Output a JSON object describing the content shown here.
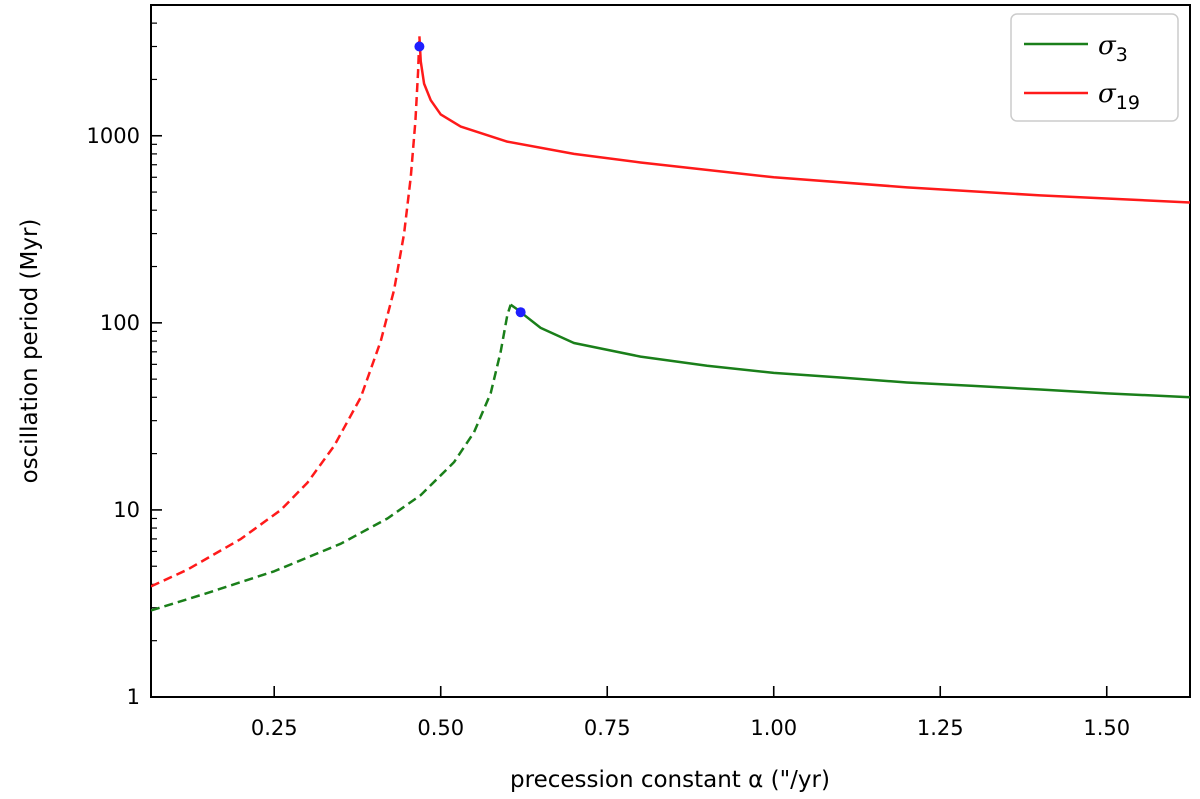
{
  "chart_data": {
    "type": "line",
    "title": "",
    "xlabel": "precession constant α (\"/yr)",
    "ylabel": "oscillation period (Myr)",
    "xlim": [
      0.065,
      1.625
    ],
    "ylim": [
      1,
      5000
    ],
    "y_scale": "log",
    "grid": false,
    "legend_position": "top-right",
    "x_ticks": [
      {
        "value": 0.25,
        "label": "0.25"
      },
      {
        "value": 0.5,
        "label": "0.50"
      },
      {
        "value": 0.75,
        "label": "0.75"
      },
      {
        "value": 1.0,
        "label": "1.00"
      },
      {
        "value": 1.25,
        "label": "1.25"
      },
      {
        "value": 1.5,
        "label": "1.50"
      }
    ],
    "y_ticks": [
      {
        "value": 1,
        "label": "1"
      },
      {
        "value": 10,
        "label": "10"
      },
      {
        "value": 100,
        "label": "100"
      },
      {
        "value": 1000,
        "label": "1000"
      }
    ],
    "series": [
      {
        "name": "σ3",
        "legend_symbol": "σ",
        "legend_subscript": "3",
        "color": "#1a7f1a",
        "dashed_segment": {
          "x": [
            0.065,
            0.15,
            0.25,
            0.35,
            0.42,
            0.47,
            0.52,
            0.55,
            0.575,
            0.59,
            0.6,
            0.605
          ],
          "y": [
            2.9,
            3.6,
            4.7,
            6.6,
            9.0,
            12.0,
            18.0,
            26.0,
            42.0,
            70.0,
            110.0,
            125.0
          ]
        },
        "solid_segment": {
          "x": [
            0.605,
            0.615,
            0.62,
            0.65,
            0.7,
            0.8,
            0.9,
            1.0,
            1.1,
            1.2,
            1.3,
            1.4,
            1.5,
            1.625
          ],
          "y": [
            125.0,
            118.0,
            114.0,
            94.0,
            78.0,
            66.0,
            59.0,
            54.0,
            51.0,
            48.0,
            46.0,
            44.0,
            42.0,
            40.0
          ]
        },
        "marker": {
          "x": 0.62,
          "y": 114.0
        }
      },
      {
        "name": "σ19",
        "legend_symbol": "σ",
        "legend_subscript": "19",
        "color": "#ff1a1a",
        "dashed_segment": {
          "x": [
            0.065,
            0.12,
            0.2,
            0.26,
            0.3,
            0.34,
            0.38,
            0.41,
            0.43,
            0.445,
            0.455,
            0.462,
            0.466,
            0.468
          ],
          "y": [
            3.9,
            4.8,
            7.0,
            10.0,
            14.0,
            22.0,
            40.0,
            80.0,
            150.0,
            300.0,
            600.0,
            1200.0,
            2200.0,
            3400.0
          ]
        },
        "solid_segment": {
          "x": [
            0.468,
            0.47,
            0.475,
            0.485,
            0.5,
            0.53,
            0.6,
            0.7,
            0.8,
            1.0,
            1.2,
            1.4,
            1.625
          ],
          "y": [
            3400.0,
            2500.0,
            1900.0,
            1550.0,
            1300.0,
            1120.0,
            930.0,
            800.0,
            720.0,
            600.0,
            530.0,
            480.0,
            440.0
          ]
        },
        "marker": {
          "x": 0.468,
          "y": 3000.0
        }
      }
    ],
    "marker_color": "#1f1fff"
  }
}
